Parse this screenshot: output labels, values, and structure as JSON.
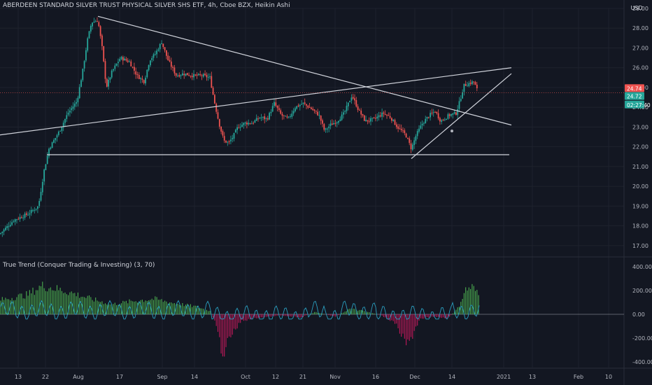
{
  "header": {
    "title": "ABERDEEN STANDARD SILVER TRUST PHYSICAL SILVER SHS ETF, 4h, Cboe BZX, Heikin Ashi",
    "currency": "USD"
  },
  "indicator": {
    "label": "True Trend (Conquer Trading & Investing) (3, 70)"
  },
  "price_badges": {
    "last": "24.74",
    "prev": "24.72",
    "countdown": "02:27:40"
  },
  "colors": {
    "background": "#131722",
    "grid": "#1e222d",
    "up": "#26a69a",
    "down": "#ef5350",
    "text": "#b2b5be",
    "lines": "#d1d4dc",
    "hist_up": "#4caf50",
    "hist_down": "#c2185b",
    "oscillator": "#2a9fc0"
  },
  "chart_data": {
    "type": "candlestick",
    "title": "ABERDEEN STANDARD SILVER TRUST PHYSICAL SILVER SHS ETF, 4h, Cboe BZX, Heikin Ashi",
    "ylim": [
      16.5,
      29.0
    ],
    "y_ticks": [
      "17.00",
      "18.00",
      "19.00",
      "20.00",
      "21.00",
      "22.00",
      "23.00",
      "24.00",
      "25.00",
      "26.00",
      "27.00",
      "28.00",
      "29.00"
    ],
    "x_ticks": [
      "13",
      "22",
      "Aug",
      "17",
      "Sep",
      "14",
      "Oct",
      "12",
      "21",
      "Nov",
      "16",
      "Dec",
      "14",
      "2021",
      "13",
      "Feb",
      "10"
    ],
    "price_path": [
      [
        0,
        17.6
      ],
      [
        20,
        18.3
      ],
      [
        40,
        18.6
      ],
      [
        55,
        19.0
      ],
      [
        63,
        20.8
      ],
      [
        70,
        21.9
      ],
      [
        85,
        22.8
      ],
      [
        97,
        23.7
      ],
      [
        110,
        24.3
      ],
      [
        118,
        25.8
      ],
      [
        125,
        27.4
      ],
      [
        131,
        28.3
      ],
      [
        140,
        28.4
      ],
      [
        146,
        27.0
      ],
      [
        152,
        25.0
      ],
      [
        160,
        25.8
      ],
      [
        172,
        26.5
      ],
      [
        185,
        26.3
      ],
      [
        196,
        25.6
      ],
      [
        206,
        25.3
      ],
      [
        214,
        26.4
      ],
      [
        222,
        26.7
      ],
      [
        231,
        27.3
      ],
      [
        240,
        26.4
      ],
      [
        252,
        25.6
      ],
      [
        262,
        25.7
      ],
      [
        276,
        25.6
      ],
      [
        290,
        25.6
      ],
      [
        300,
        25.5
      ],
      [
        307,
        24.2
      ],
      [
        313,
        23.2
      ],
      [
        320,
        22.3
      ],
      [
        327,
        22.2
      ],
      [
        333,
        22.5
      ],
      [
        340,
        23.0
      ],
      [
        350,
        23.2
      ],
      [
        360,
        23.2
      ],
      [
        372,
        23.5
      ],
      [
        382,
        23.4
      ],
      [
        392,
        24.2
      ],
      [
        402,
        23.6
      ],
      [
        412,
        23.4
      ],
      [
        422,
        24.0
      ],
      [
        433,
        24.2
      ],
      [
        446,
        23.9
      ],
      [
        456,
        23.6
      ],
      [
        464,
        22.8
      ],
      [
        472,
        23.1
      ],
      [
        482,
        23.3
      ],
      [
        492,
        23.7
      ],
      [
        503,
        24.6
      ],
      [
        512,
        23.9
      ],
      [
        522,
        23.3
      ],
      [
        535,
        23.4
      ],
      [
        548,
        23.7
      ],
      [
        558,
        23.5
      ],
      [
        568,
        23.0
      ],
      [
        580,
        22.6
      ],
      [
        588,
        21.9
      ],
      [
        595,
        22.6
      ],
      [
        604,
        23.2
      ],
      [
        614,
        23.6
      ],
      [
        622,
        23.8
      ],
      [
        630,
        23.3
      ],
      [
        642,
        23.6
      ],
      [
        652,
        23.7
      ],
      [
        658,
        24.4
      ],
      [
        663,
        25.1
      ],
      [
        670,
        25.2
      ],
      [
        677,
        25.3
      ],
      [
        683,
        24.8
      ]
    ],
    "annotations": [
      {
        "type": "trendline",
        "from": [
          140,
          28.6
        ],
        "to": [
          731,
          23.1
        ]
      },
      {
        "type": "trendline",
        "from": [
          0,
          22.6
        ],
        "to": [
          731,
          26.0
        ]
      },
      {
        "type": "horizontal",
        "from": [
          67,
          21.6
        ],
        "to": [
          728,
          21.6
        ]
      },
      {
        "type": "trendline",
        "from": [
          588,
          21.4
        ],
        "to": [
          731,
          25.7
        ]
      }
    ],
    "last_price": 24.74,
    "oscillator": {
      "name": "True Trend (Conquer Trading & Investing) (3, 70)",
      "ylim": [
        -450,
        450
      ],
      "y_ticks": [
        "400.00",
        "200.00",
        "0.00",
        "-200.00",
        "-400.00"
      ],
      "hist_path": [
        [
          0,
          130
        ],
        [
          40,
          180
        ],
        [
          60,
          260
        ],
        [
          75,
          240
        ],
        [
          100,
          200
        ],
        [
          130,
          140
        ],
        [
          160,
          90
        ],
        [
          190,
          120
        ],
        [
          220,
          140
        ],
        [
          250,
          100
        ],
        [
          280,
          70
        ],
        [
          300,
          30
        ],
        [
          308,
          -80
        ],
        [
          318,
          -360
        ],
        [
          330,
          -200
        ],
        [
          345,
          -60
        ],
        [
          370,
          -30
        ],
        [
          400,
          -10
        ],
        [
          430,
          -30
        ],
        [
          450,
          20
        ],
        [
          480,
          -20
        ],
        [
          500,
          50
        ],
        [
          520,
          30
        ],
        [
          545,
          -10
        ],
        [
          565,
          -80
        ],
        [
          580,
          -260
        ],
        [
          590,
          -200
        ],
        [
          600,
          -40
        ],
        [
          620,
          -20
        ],
        [
          640,
          -40
        ],
        [
          655,
          60
        ],
        [
          665,
          220
        ],
        [
          675,
          250
        ],
        [
          686,
          160
        ]
      ]
    }
  }
}
